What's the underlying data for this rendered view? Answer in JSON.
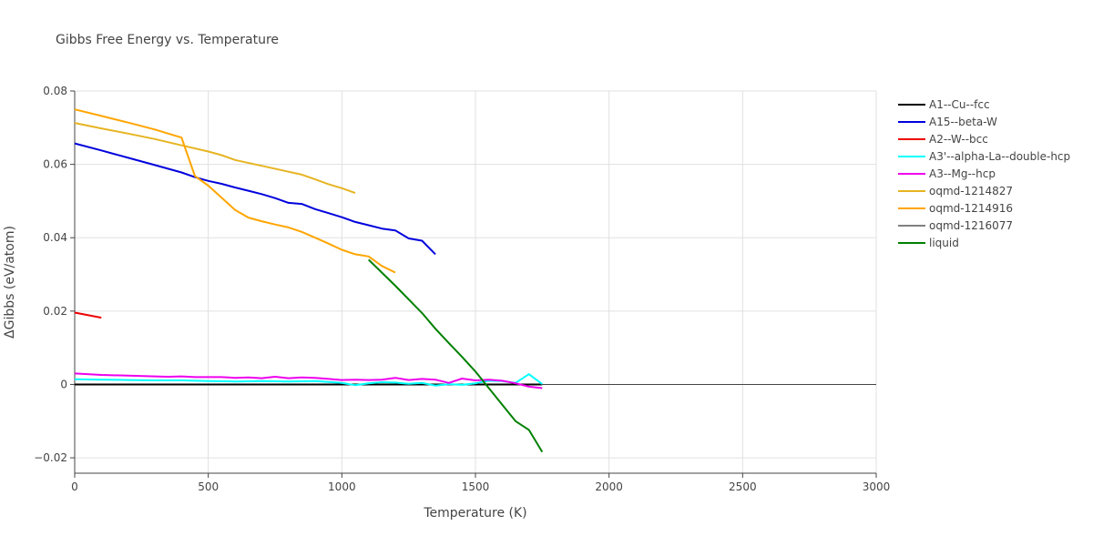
{
  "chart_data": {
    "type": "line",
    "title": "Gibbs Free Energy vs. Temperature",
    "xlabel": "Temperature (K)",
    "ylabel": "ΔGibbs (eV/atom)",
    "xlim": [
      0,
      3000
    ],
    "ylim": [
      -0.0242,
      0.08
    ],
    "xticks": [
      0,
      500,
      1000,
      1500,
      2000,
      2500,
      3000
    ],
    "xtick_labels": [
      "0",
      "500",
      "1000",
      "1500",
      "2000",
      "2500",
      "3000"
    ],
    "yticks": [
      -0.02,
      0,
      0.02,
      0.04,
      0.06,
      0.08
    ],
    "ytick_labels": [
      "−0.02",
      "0",
      "0.02",
      "0.04",
      "0.06",
      "0.08"
    ],
    "grid": true,
    "legend_position": "right",
    "series": [
      {
        "name": "A1--Cu--fcc",
        "color": "#000000",
        "x": [
          0,
          250,
          500,
          750,
          1000,
          1250,
          1500,
          1750
        ],
        "y": [
          0,
          0,
          0,
          0,
          0,
          0,
          0,
          0
        ]
      },
      {
        "name": "A15--beta-W",
        "color": "#0000dd",
        "x": [
          0,
          100,
          200,
          300,
          400,
          450,
          500,
          550,
          600,
          650,
          700,
          750,
          800,
          850,
          900,
          950,
          1000,
          1050,
          1100,
          1150,
          1200,
          1250,
          1300,
          1350
        ],
        "y": [
          0.0657,
          0.0638,
          0.0618,
          0.0598,
          0.0578,
          0.0565,
          0.0555,
          0.0547,
          0.0537,
          0.0528,
          0.0519,
          0.0508,
          0.0495,
          0.0492,
          0.0478,
          0.0467,
          0.0456,
          0.0443,
          0.0434,
          0.0425,
          0.042,
          0.0398,
          0.0392,
          0.0355
        ]
      },
      {
        "name": "A2--W--bcc",
        "color": "#ee0000",
        "x": [
          0,
          100
        ],
        "y": [
          0.0196,
          0.0182
        ]
      },
      {
        "name": "A3'--alpha-La--double-hcp",
        "color": "#00ffff",
        "x": [
          0,
          100,
          200,
          300,
          400,
          500,
          600,
          700,
          800,
          900,
          1000,
          1050,
          1100,
          1150,
          1200,
          1250,
          1300,
          1350,
          1400,
          1450,
          1500,
          1550,
          1600,
          1650,
          1700,
          1750
        ],
        "y": [
          0.0014,
          0.0013,
          0.0012,
          0.0011,
          0.0011,
          0.0009,
          0.0008,
          0.0009,
          0.0008,
          0.0009,
          0.0004,
          -0.0002,
          0.0003,
          0.0006,
          0.0005,
          0.0002,
          0.0004,
          -0.0003,
          0.0001,
          -0.0001,
          0.0003,
          0.001,
          0.0009,
          0.0004,
          0.0028,
          0.0001
        ]
      },
      {
        "name": "A3--Mg--hcp",
        "color": "#ee00ee",
        "x": [
          0,
          100,
          200,
          300,
          350,
          400,
          450,
          500,
          550,
          600,
          650,
          700,
          750,
          800,
          850,
          900,
          950,
          1000,
          1050,
          1100,
          1150,
          1200,
          1250,
          1300,
          1350,
          1400,
          1450,
          1500,
          1550,
          1600,
          1650,
          1700,
          1750
        ],
        "y": [
          0.003,
          0.0026,
          0.0024,
          0.0022,
          0.0021,
          0.0022,
          0.002,
          0.002,
          0.002,
          0.0018,
          0.0019,
          0.0017,
          0.0021,
          0.0017,
          0.0019,
          0.0018,
          0.0015,
          0.0012,
          0.0013,
          0.0012,
          0.0013,
          0.0018,
          0.0012,
          0.0015,
          0.0013,
          0.0004,
          0.0016,
          0.0011,
          0.0013,
          0.001,
          0.0003,
          -0.0006,
          -0.001
        ]
      },
      {
        "name": "oqmd-1214827",
        "color": "#e6b422",
        "x": [
          0,
          100,
          200,
          300,
          400,
          500,
          550,
          600,
          700,
          800,
          850,
          900,
          950,
          1000,
          1050
        ],
        "y": [
          0.0713,
          0.0698,
          0.0684,
          0.0669,
          0.0652,
          0.0635,
          0.0625,
          0.0612,
          0.0596,
          0.058,
          0.0572,
          0.0559,
          0.0546,
          0.0535,
          0.0522
        ]
      },
      {
        "name": "oqmd-1214916",
        "color": "#ffa500",
        "x": [
          0,
          100,
          200,
          300,
          400,
          450,
          500,
          550,
          600,
          650,
          700,
          750,
          800,
          850,
          900,
          950,
          1000,
          1050,
          1100,
          1150,
          1200
        ],
        "y": [
          0.075,
          0.0732,
          0.0714,
          0.0695,
          0.0673,
          0.0568,
          0.0542,
          0.0509,
          0.0476,
          0.0455,
          0.0445,
          0.0436,
          0.0428,
          0.0416,
          0.04,
          0.0384,
          0.0367,
          0.0355,
          0.0349,
          0.0323,
          0.0305
        ]
      },
      {
        "name": "oqmd-1216077",
        "color": "#808080",
        "x": [],
        "y": []
      },
      {
        "name": "liquid",
        "color": "#008000",
        "x": [
          1100,
          1200,
          1300,
          1350,
          1400,
          1450,
          1500,
          1550,
          1600,
          1650,
          1700,
          1750
        ],
        "y": [
          0.034,
          0.0269,
          0.0195,
          0.0152,
          0.0113,
          0.0075,
          0.0035,
          -0.001,
          -0.0055,
          -0.01,
          -0.0124,
          -0.0184
        ]
      }
    ]
  }
}
